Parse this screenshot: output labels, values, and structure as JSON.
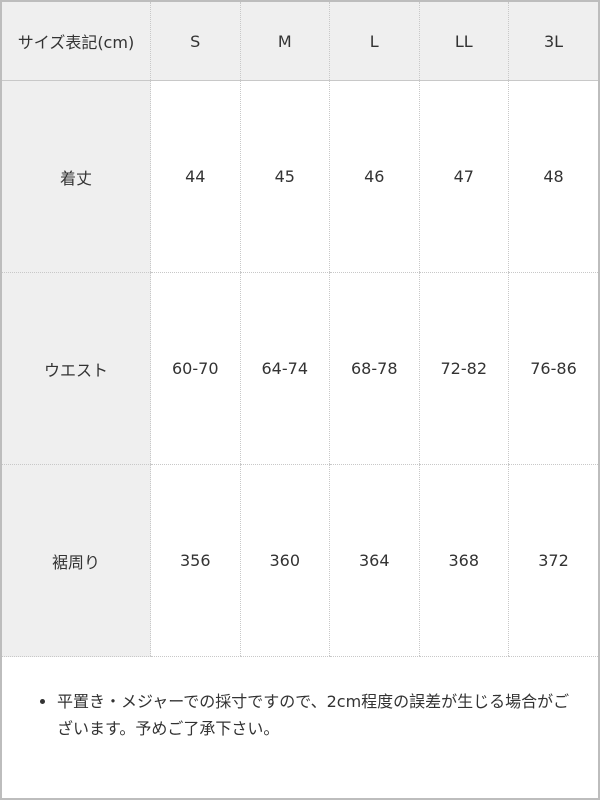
{
  "table": {
    "headers": [
      "サイズ表記(cm)",
      "S",
      "M",
      "L",
      "LL",
      "3L"
    ],
    "rows": [
      {
        "label": "着丈",
        "values": [
          "44",
          "45",
          "46",
          "47",
          "48"
        ]
      },
      {
        "label": "ウエスト",
        "values": [
          "60-70",
          "64-74",
          "68-78",
          "72-82",
          "76-86"
        ]
      },
      {
        "label": "裾周り",
        "values": [
          "356",
          "360",
          "364",
          "368",
          "372"
        ]
      }
    ]
  },
  "note": "平置き・メジャーでの採寸ですので、2cm程度の誤差が生じる場合がございます。予めご了承下さい。"
}
